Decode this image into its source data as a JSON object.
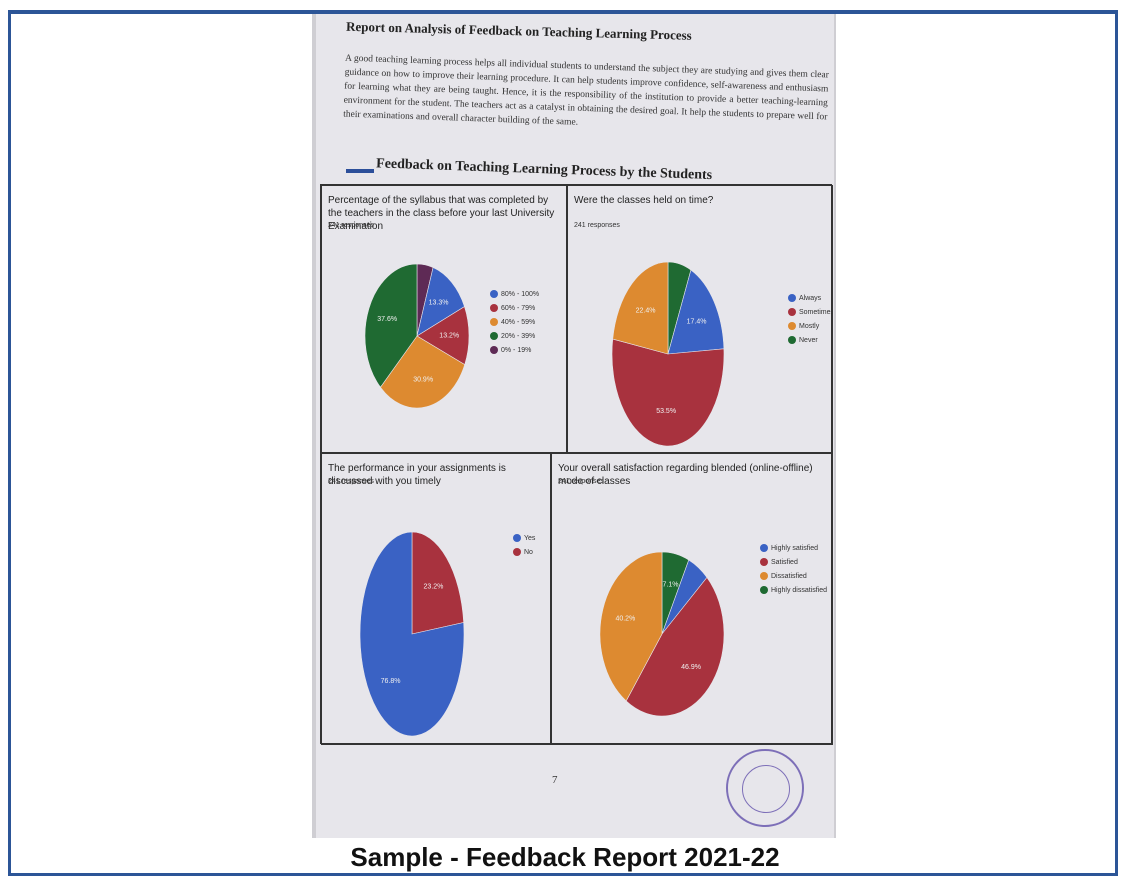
{
  "document": {
    "title": "Report on Analysis of Feedback on Teaching Learning Process",
    "intro": "A good teaching learning process helps all individual students to understand the subject they are studying and gives them clear guidance on how to improve their learning procedure. It can help students improve confidence, self-awareness and enthusiasm for learning what they are being taught. Hence, it is the responsibility of the institution to provide a better teaching-learning environment for the student. The teachers act as a catalyst in obtaining the desired goal. It help the students to prepare well for their examinations and overall character building of the same.",
    "section_title": "Feedback on Teaching Learning Process by the Students",
    "page_number": "7",
    "caption": "Sample - Feedback Report 2021-22"
  },
  "chart_data": [
    {
      "type": "pie",
      "title": "Percentage of the syllabus that was completed by the teachers in the class before your last University Examination",
      "subtitle": "241 responses",
      "categories": [
        "80% - 100%",
        "60% - 79%",
        "40% - 59%",
        "20% - 39%",
        "0% - 19%"
      ],
      "values": [
        13.3,
        13.2,
        30.9,
        37.6,
        5.0
      ],
      "value_labels": [
        "13.3%",
        "13.2%",
        "30.9%",
        "37.6%",
        null
      ],
      "colors": [
        "#3a62c4",
        "#a8323e",
        "#dd8a30",
        "#1f6a32",
        "#5e2a55"
      ]
    },
    {
      "type": "pie",
      "title": "Were the classes held on time?",
      "subtitle": "241 responses",
      "categories": [
        "Always",
        "Sometimes",
        "Mostly",
        "Never"
      ],
      "values": [
        17.4,
        53.5,
        22.4,
        6.7
      ],
      "value_labels": [
        "17.4%",
        "53.5%",
        "22.4%",
        null
      ],
      "colors": [
        "#3a62c4",
        "#a8323e",
        "#dd8a30",
        "#1f6a32"
      ]
    },
    {
      "type": "pie",
      "title": "The performance in your assignments is discussed with you timely",
      "subtitle": "241 responses",
      "categories": [
        "Yes",
        "No"
      ],
      "values": [
        76.8,
        23.2
      ],
      "value_labels": [
        "76.8%",
        "23.2%"
      ],
      "colors": [
        "#3a62c4",
        "#a8323e"
      ]
    },
    {
      "type": "pie",
      "title": "Your overall satisfaction regarding blended (online-offline) mode of classes",
      "subtitle": "241 responses",
      "categories": [
        "Highly satisfied",
        "Satisfied",
        "Dissatisfied",
        "Highly dissatisfied"
      ],
      "values": [
        5.8,
        46.9,
        40.2,
        7.1
      ],
      "value_labels": [
        null,
        "46.9%",
        "40.2%",
        "7.1%"
      ],
      "colors": [
        "#3a62c4",
        "#a8323e",
        "#dd8a30",
        "#1f6a32"
      ]
    }
  ]
}
